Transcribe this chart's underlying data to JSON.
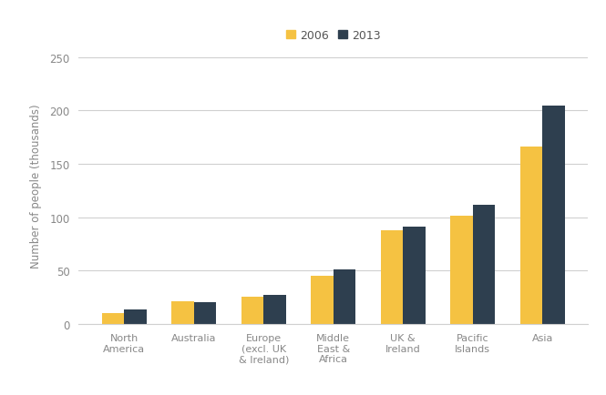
{
  "categories": [
    "North\nAmerica",
    "Australia",
    "Europe\n(excl. UK\n& Ireland)",
    "Middle\nEast &\nAfrica",
    "UK &\nIreland",
    "Pacific\nIslands",
    "Asia"
  ],
  "values_2006": [
    10,
    21,
    25,
    45,
    88,
    101,
    166
  ],
  "values_2013": [
    13,
    20,
    27,
    51,
    91,
    112,
    205
  ],
  "color_2006": "#F5C242",
  "color_2013": "#2E3F4F",
  "ylabel": "Number of people (thousands)",
  "ylim": [
    0,
    260
  ],
  "yticks": [
    0,
    50,
    100,
    150,
    200,
    250
  ],
  "legend_labels": [
    "2006",
    "2013"
  ],
  "background_color": "#ffffff",
  "grid_color": "#d0d0d0",
  "bar_width": 0.32
}
